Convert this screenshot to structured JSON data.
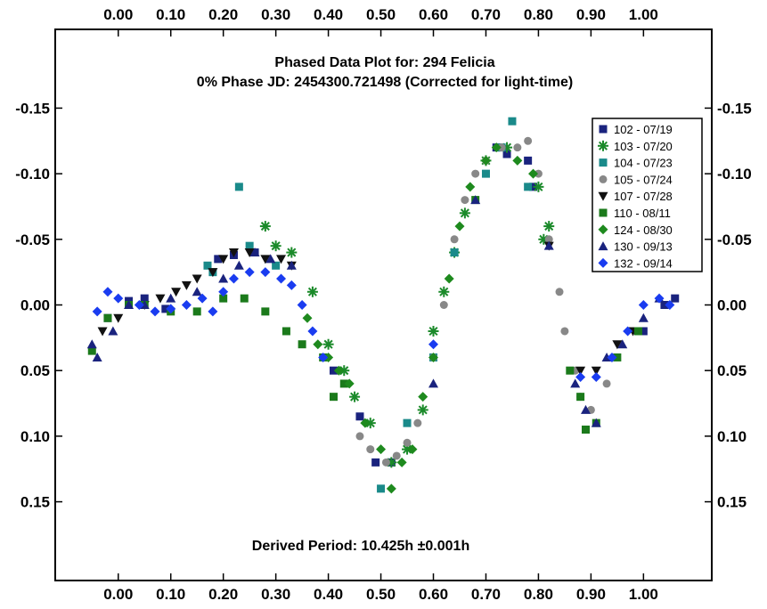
{
  "chart_data": {
    "type": "scatter",
    "title": "Phased Data Plot for: 294 Felicia",
    "subtitle": "0% Phase JD:  2454300.721498   (Corrected for light-time)",
    "annotation": "Derived Period: 10.425h   ±0.001h",
    "xlabel": "",
    "ylabel": "",
    "xlim": [
      -0.12,
      1.13
    ],
    "ylim": [
      0.21,
      -0.21
    ],
    "y_inverted": true,
    "grid": false,
    "legend_position": "top-right",
    "x_tick_labels": [
      "0.00",
      "0.10",
      "0.20",
      "0.30",
      "0.40",
      "0.50",
      "0.60",
      "0.70",
      "0.80",
      "0.90",
      "1.00"
    ],
    "x_ticks": [
      0.0,
      0.1,
      0.2,
      0.3,
      0.4,
      0.5,
      0.6,
      0.7,
      0.8,
      0.9,
      1.0
    ],
    "y_tick_labels": [
      "-0.15",
      "-0.10",
      "-0.05",
      "0.00",
      "0.05",
      "0.10",
      "0.15"
    ],
    "y_ticks": [
      -0.15,
      -0.1,
      -0.05,
      0.0,
      0.05,
      0.1,
      0.15
    ],
    "series": [
      {
        "name": "102 - 07/19",
        "color": "#1a237e",
        "marker": "square",
        "points": [
          [
            -0.02,
            0.01
          ],
          [
            0.02,
            -0.003
          ],
          [
            0.05,
            -0.005
          ],
          [
            0.09,
            0.003
          ],
          [
            0.19,
            -0.035
          ],
          [
            0.22,
            -0.038
          ],
          [
            0.26,
            -0.04
          ],
          [
            0.41,
            0.05
          ],
          [
            0.46,
            0.085
          ],
          [
            0.49,
            0.12
          ],
          [
            0.52,
            0.12
          ],
          [
            0.72,
            -0.12
          ],
          [
            0.74,
            -0.115
          ],
          [
            0.78,
            -0.11
          ],
          [
            0.79,
            -0.09
          ],
          [
            1.0,
            0.02
          ],
          [
            1.04,
            0.0
          ],
          [
            1.06,
            -0.005
          ]
        ]
      },
      {
        "name": "103 - 07/20",
        "color": "#1b8a2a",
        "marker": "asterisk",
        "points": [
          [
            0.28,
            -0.06
          ],
          [
            0.3,
            -0.045
          ],
          [
            0.33,
            -0.04
          ],
          [
            0.37,
            -0.01
          ],
          [
            0.4,
            0.03
          ],
          [
            0.43,
            0.05
          ],
          [
            0.45,
            0.07
          ],
          [
            0.48,
            0.09
          ],
          [
            0.52,
            0.12
          ],
          [
            0.55,
            0.11
          ],
          [
            0.58,
            0.08
          ],
          [
            0.6,
            0.02
          ],
          [
            0.62,
            -0.01
          ],
          [
            0.64,
            -0.04
          ],
          [
            0.66,
            -0.07
          ],
          [
            0.7,
            -0.11
          ],
          [
            0.74,
            -0.12
          ],
          [
            0.8,
            -0.09
          ],
          [
            0.81,
            -0.05
          ],
          [
            0.82,
            -0.06
          ]
        ]
      },
      {
        "name": "104 - 07/23",
        "color": "#1a8a8a",
        "marker": "square",
        "points": [
          [
            0.17,
            -0.03
          ],
          [
            0.18,
            -0.025
          ],
          [
            0.23,
            -0.09
          ],
          [
            0.25,
            -0.045
          ],
          [
            0.3,
            -0.03
          ],
          [
            0.5,
            0.14
          ],
          [
            0.55,
            0.09
          ],
          [
            0.6,
            0.04
          ],
          [
            0.64,
            -0.04
          ],
          [
            0.7,
            -0.1
          ],
          [
            0.73,
            -0.12
          ],
          [
            0.75,
            -0.14
          ],
          [
            0.78,
            -0.09
          ]
        ]
      },
      {
        "name": "105 - 07/24",
        "color": "#888888",
        "marker": "circle",
        "points": [
          [
            0.46,
            0.1
          ],
          [
            0.48,
            0.11
          ],
          [
            0.51,
            0.12
          ],
          [
            0.53,
            0.115
          ],
          [
            0.55,
            0.105
          ],
          [
            0.57,
            0.09
          ],
          [
            0.6,
            0.04
          ],
          [
            0.62,
            0.0
          ],
          [
            0.64,
            -0.05
          ],
          [
            0.66,
            -0.08
          ],
          [
            0.68,
            -0.1
          ],
          [
            0.7,
            -0.11
          ],
          [
            0.73,
            -0.12
          ],
          [
            0.76,
            -0.12
          ],
          [
            0.78,
            -0.125
          ],
          [
            0.8,
            -0.1
          ],
          [
            0.82,
            -0.05
          ],
          [
            0.84,
            -0.01
          ],
          [
            0.85,
            0.02
          ],
          [
            0.87,
            0.05
          ],
          [
            0.88,
            0.07
          ],
          [
            0.9,
            0.08
          ],
          [
            0.93,
            0.06
          ]
        ]
      },
      {
        "name": "107 - 07/28",
        "color": "#111111",
        "marker": "triangle-down",
        "points": [
          [
            -0.03,
            0.02
          ],
          [
            0.0,
            0.01
          ],
          [
            0.05,
            0.0
          ],
          [
            0.08,
            -0.005
          ],
          [
            0.11,
            -0.01
          ],
          [
            0.13,
            -0.015
          ],
          [
            0.15,
            -0.02
          ],
          [
            0.18,
            -0.025
          ],
          [
            0.2,
            -0.035
          ],
          [
            0.22,
            -0.04
          ],
          [
            0.25,
            -0.04
          ],
          [
            0.28,
            -0.035
          ],
          [
            0.31,
            -0.035
          ],
          [
            0.33,
            -0.03
          ],
          [
            0.82,
            -0.045
          ],
          [
            0.88,
            0.05
          ],
          [
            0.91,
            0.05
          ],
          [
            0.95,
            0.03
          ],
          [
            0.98,
            0.02
          ]
        ]
      },
      {
        "name": "110 - 08/11",
        "color": "#1b7a1b",
        "marker": "square",
        "points": [
          [
            -0.05,
            0.035
          ],
          [
            -0.02,
            0.01
          ],
          [
            0.02,
            0.0
          ],
          [
            0.05,
            0.0
          ],
          [
            0.1,
            0.005
          ],
          [
            0.15,
            0.005
          ],
          [
            0.2,
            -0.005
          ],
          [
            0.24,
            -0.005
          ],
          [
            0.28,
            0.005
          ],
          [
            0.32,
            0.02
          ],
          [
            0.35,
            0.03
          ],
          [
            0.39,
            0.04
          ],
          [
            0.41,
            0.07
          ],
          [
            0.43,
            0.06
          ],
          [
            0.68,
            -0.08
          ],
          [
            0.86,
            0.05
          ],
          [
            0.88,
            0.07
          ],
          [
            0.89,
            0.095
          ],
          [
            0.91,
            0.09
          ],
          [
            0.95,
            0.04
          ],
          [
            0.99,
            0.02
          ]
        ]
      },
      {
        "name": "124 - 08/30",
        "color": "#1e8a1e",
        "marker": "diamond",
        "points": [
          [
            0.36,
            0.01
          ],
          [
            0.38,
            0.03
          ],
          [
            0.4,
            0.04
          ],
          [
            0.42,
            0.05
          ],
          [
            0.44,
            0.06
          ],
          [
            0.47,
            0.09
          ],
          [
            0.5,
            0.11
          ],
          [
            0.52,
            0.14
          ],
          [
            0.54,
            0.12
          ],
          [
            0.56,
            0.11
          ],
          [
            0.58,
            0.07
          ],
          [
            0.6,
            0.04
          ],
          [
            0.63,
            -0.02
          ],
          [
            0.65,
            -0.06
          ],
          [
            0.67,
            -0.09
          ],
          [
            0.7,
            -0.11
          ],
          [
            0.72,
            -0.12
          ],
          [
            0.76,
            -0.11
          ],
          [
            0.79,
            -0.1
          ]
        ]
      },
      {
        "name": "130 - 09/13",
        "color": "#1a237e",
        "marker": "triangle-up",
        "points": [
          [
            -0.05,
            0.03
          ],
          [
            -0.04,
            0.04
          ],
          [
            -0.01,
            0.02
          ],
          [
            0.02,
            0.0
          ],
          [
            0.05,
            0.0
          ],
          [
            0.1,
            -0.005
          ],
          [
            0.15,
            -0.01
          ],
          [
            0.2,
            -0.02
          ],
          [
            0.23,
            -0.03
          ],
          [
            0.26,
            -0.04
          ],
          [
            0.29,
            -0.035
          ],
          [
            0.33,
            -0.03
          ],
          [
            0.6,
            0.06
          ],
          [
            0.68,
            -0.08
          ],
          [
            0.82,
            -0.045
          ],
          [
            0.87,
            0.06
          ],
          [
            0.89,
            0.08
          ],
          [
            0.91,
            0.09
          ],
          [
            0.93,
            0.04
          ],
          [
            0.96,
            0.03
          ],
          [
            1.0,
            0.01
          ],
          [
            1.03,
            -0.005
          ]
        ]
      },
      {
        "name": "132 - 09/14",
        "color": "#1a3cf0",
        "marker": "diamond",
        "points": [
          [
            -0.04,
            0.005
          ],
          [
            -0.02,
            -0.01
          ],
          [
            0.0,
            -0.005
          ],
          [
            0.04,
            0.0
          ],
          [
            0.07,
            0.005
          ],
          [
            0.1,
            0.003
          ],
          [
            0.13,
            0.0
          ],
          [
            0.16,
            -0.005
          ],
          [
            0.18,
            0.005
          ],
          [
            0.2,
            -0.01
          ],
          [
            0.22,
            -0.02
          ],
          [
            0.25,
            -0.025
          ],
          [
            0.28,
            -0.025
          ],
          [
            0.31,
            -0.02
          ],
          [
            0.33,
            -0.015
          ],
          [
            0.35,
            0.0
          ],
          [
            0.37,
            0.02
          ],
          [
            0.39,
            0.04
          ],
          [
            0.6,
            0.03
          ],
          [
            0.88,
            0.055
          ],
          [
            0.91,
            0.055
          ],
          [
            0.94,
            0.04
          ],
          [
            0.97,
            0.02
          ],
          [
            1.0,
            0.0
          ],
          [
            1.03,
            -0.005
          ],
          [
            1.05,
            0.0
          ]
        ]
      }
    ]
  }
}
